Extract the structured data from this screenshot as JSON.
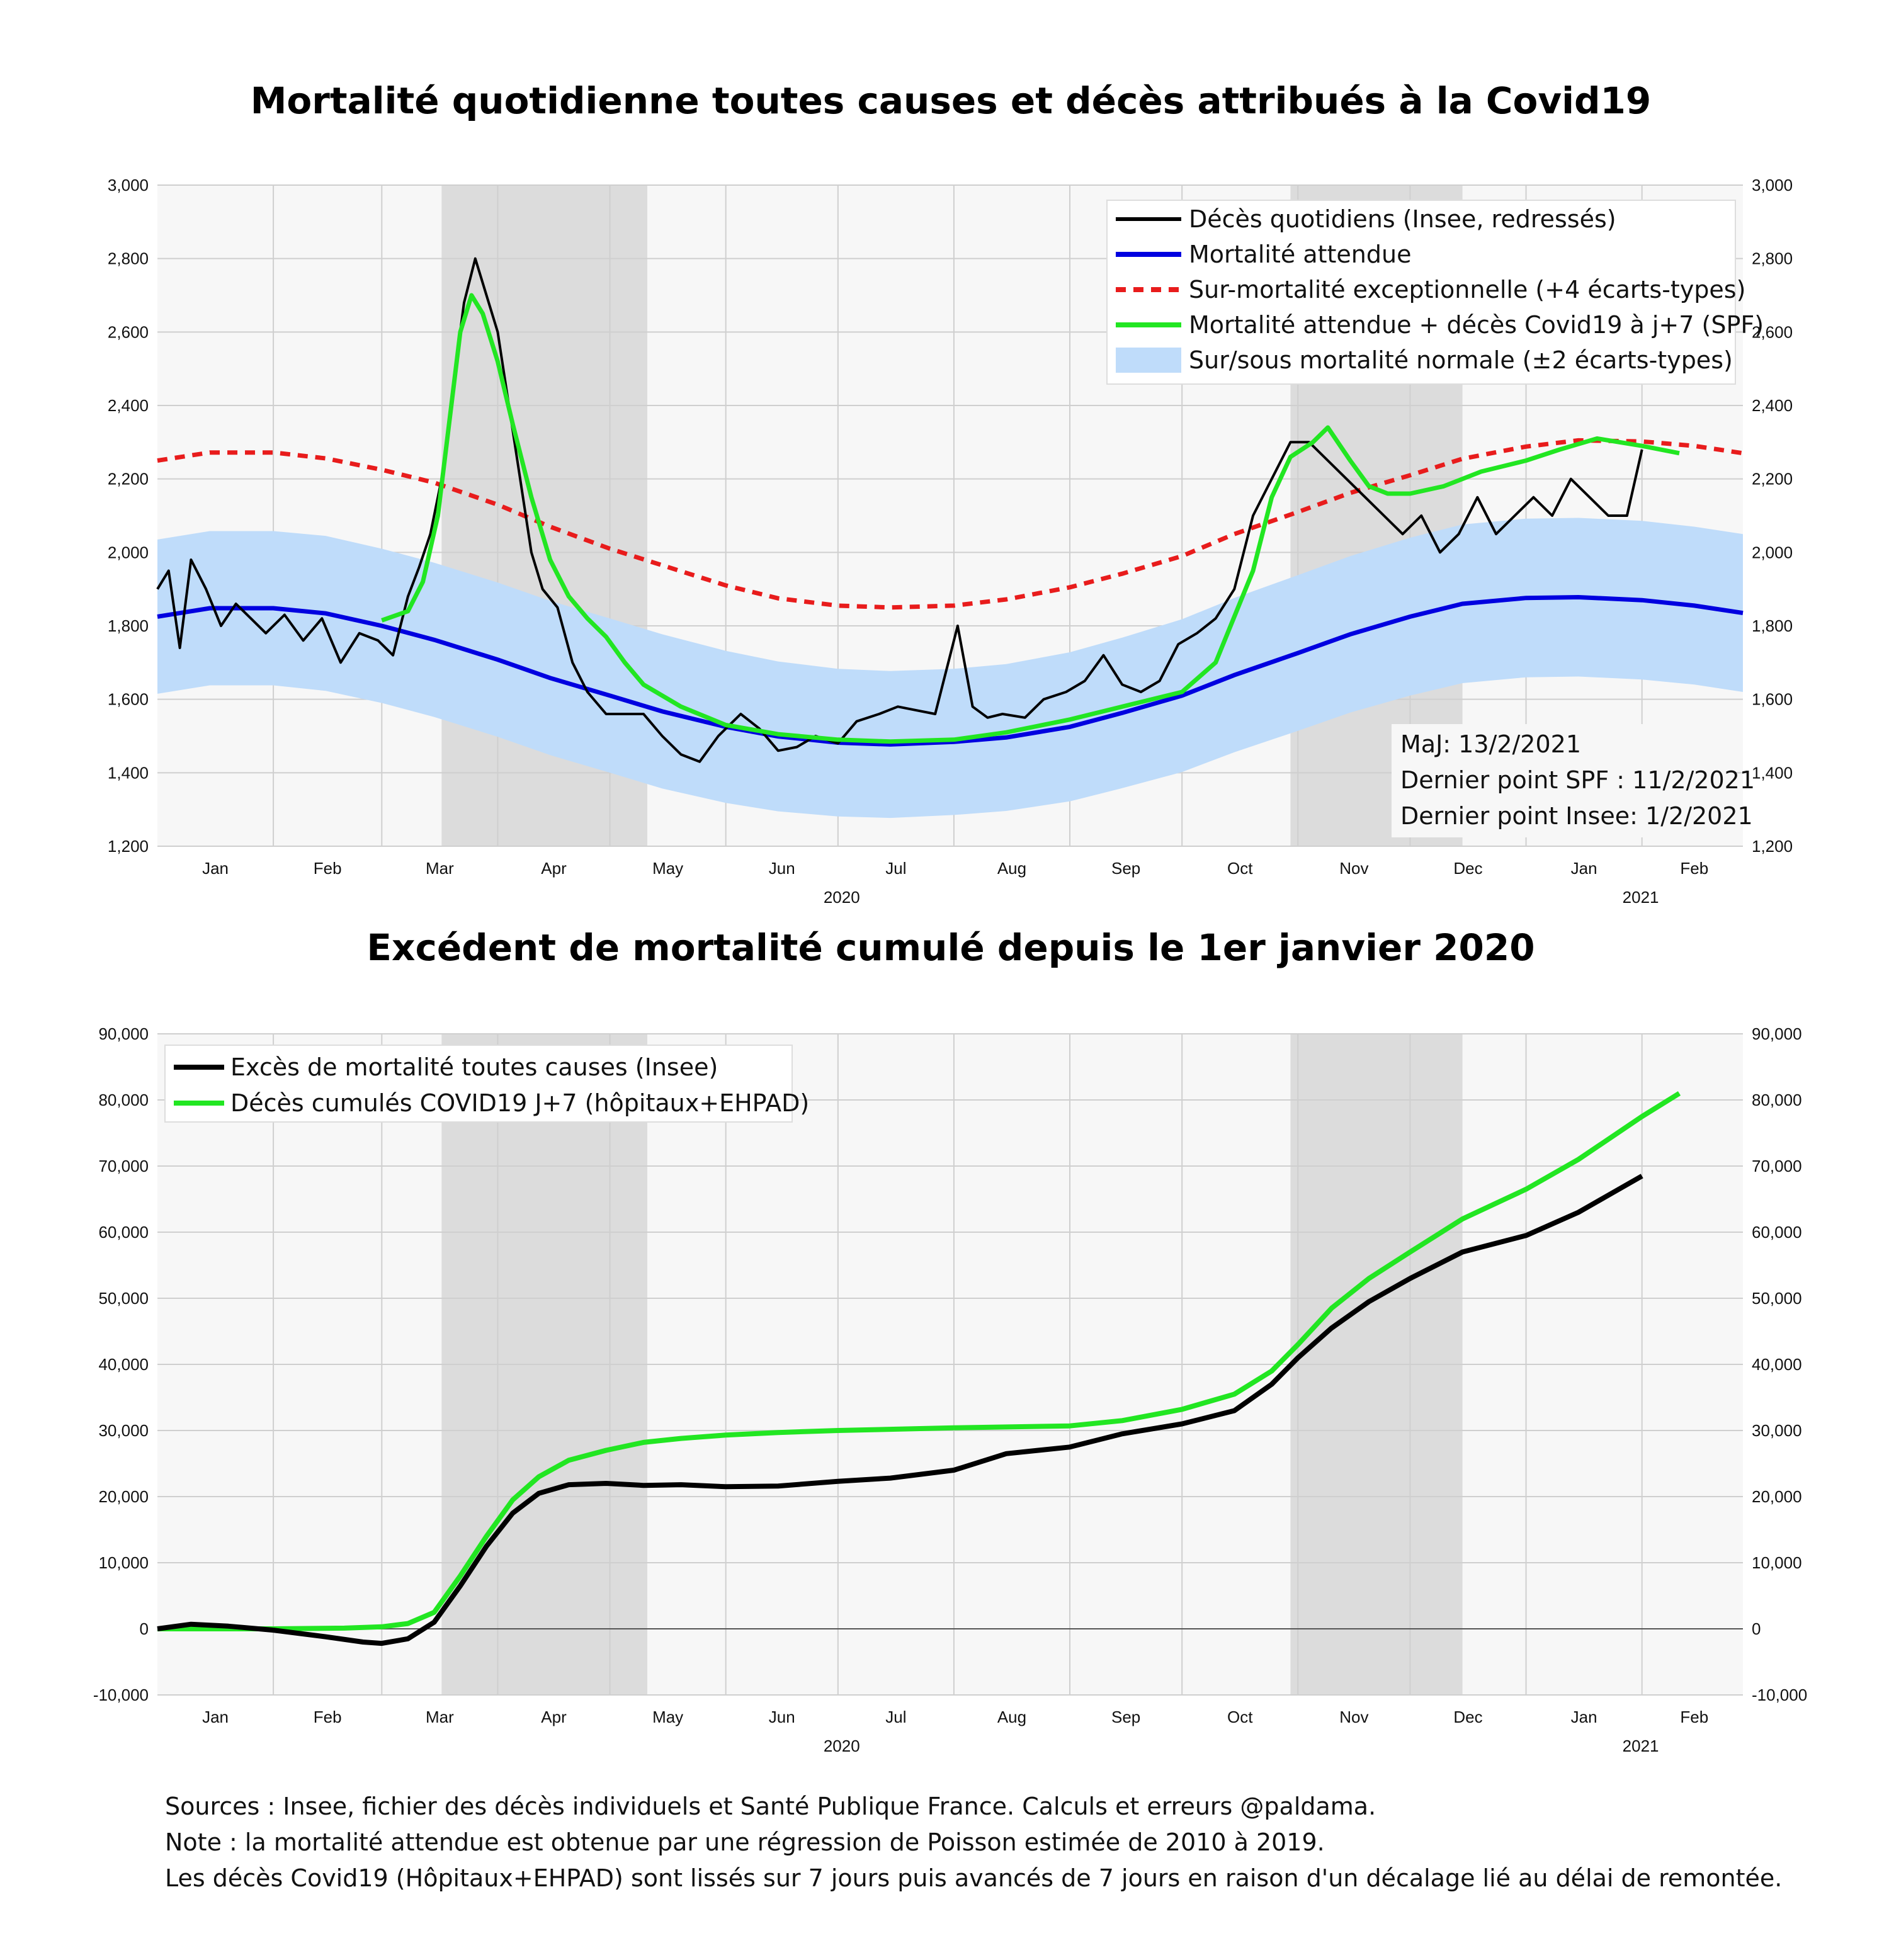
{
  "colors": {
    "daily": "#000000",
    "expected": "#0000e0",
    "exceptional": "#e81c1c",
    "covid": "#22e622",
    "band": "#bfdcfa",
    "plot_bg": "#f7f7f7",
    "shade": "#dcdcdc",
    "grid": "#cfcfcf"
  },
  "chart_data": [
    {
      "type": "line",
      "title": "Mortalité quotidienne toutes causes et décès attribués à la Covid19",
      "x_type": "date",
      "xlim": [
        "2020-01-01",
        "2021-02-28"
      ],
      "ylim": [
        1200,
        3000
      ],
      "y_ticks": [
        "1,200",
        "1,400",
        "1,600",
        "1,800",
        "2,000",
        "2,200",
        "2,400",
        "2,600",
        "2,800",
        "3,000"
      ],
      "month_labels": [
        "Jan",
        "Feb",
        "Mar",
        "Apr",
        "May",
        "Jun",
        "Jul",
        "Aug",
        "Sep",
        "Oct",
        "Nov",
        "Dec",
        "Jan",
        "Feb"
      ],
      "year_labels": [
        "2020",
        "2021"
      ],
      "grid": true,
      "legend_position": "top-right",
      "shaded_periods": [
        [
          "2020-03-17",
          "2020-05-11"
        ],
        [
          "2020-10-30",
          "2020-12-15"
        ]
      ],
      "legend": [
        "Décès quotidiens (Insee, redressés)",
        "Mortalité attendue",
        "Sur-mortalité exceptionnelle (+4 écarts-types)",
        "Mortalité attendue + décès Covid19 à j+7 (SPF)",
        "Sur/sous mortalité normale (±2 écarts-types)"
      ],
      "annotations": [
        "MaJ: 13/2/2021",
        "Dernier point SPF : 11/2/2021",
        "Dernier point Insee: 1/2/2021"
      ],
      "series": [
        {
          "name": "Décès quotidiens (Insee, redressés)",
          "x": [
            "2020-01-01",
            "2020-01-04",
            "2020-01-07",
            "2020-01-10",
            "2020-01-14",
            "2020-01-18",
            "2020-01-22",
            "2020-01-26",
            "2020-01-30",
            "2020-02-04",
            "2020-02-09",
            "2020-02-14",
            "2020-02-19",
            "2020-02-24",
            "2020-02-29",
            "2020-03-04",
            "2020-03-08",
            "2020-03-11",
            "2020-03-14",
            "2020-03-17",
            "2020-03-20",
            "2020-03-23",
            "2020-03-26",
            "2020-03-29",
            "2020-04-01",
            "2020-04-04",
            "2020-04-07",
            "2020-04-10",
            "2020-04-13",
            "2020-04-17",
            "2020-04-21",
            "2020-04-25",
            "2020-04-30",
            "2020-05-05",
            "2020-05-10",
            "2020-05-15",
            "2020-05-20",
            "2020-05-25",
            "2020-05-30",
            "2020-06-05",
            "2020-06-10",
            "2020-06-15",
            "2020-06-20",
            "2020-06-25",
            "2020-07-01",
            "2020-07-06",
            "2020-07-12",
            "2020-07-17",
            "2020-07-22",
            "2020-07-27",
            "2020-08-02",
            "2020-08-06",
            "2020-08-10",
            "2020-08-14",
            "2020-08-20",
            "2020-08-25",
            "2020-08-31",
            "2020-09-05",
            "2020-09-10",
            "2020-09-15",
            "2020-09-20",
            "2020-09-25",
            "2020-09-30",
            "2020-10-05",
            "2020-10-10",
            "2020-10-15",
            "2020-10-20",
            "2020-10-25",
            "2020-10-30",
            "2020-11-04",
            "2020-11-09",
            "2020-11-14",
            "2020-11-19",
            "2020-11-24",
            "2020-11-29",
            "2020-12-04",
            "2020-12-09",
            "2020-12-14",
            "2020-12-19",
            "2020-12-24",
            "2020-12-29",
            "2021-01-03",
            "2021-01-08",
            "2021-01-13",
            "2021-01-18",
            "2021-01-23",
            "2021-01-28",
            "2021-02-01"
          ],
          "values": [
            1900,
            1950,
            1740,
            1980,
            1900,
            1800,
            1860,
            1820,
            1780,
            1830,
            1760,
            1820,
            1700,
            1780,
            1760,
            1720,
            1880,
            1960,
            2050,
            2200,
            2450,
            2680,
            2800,
            2700,
            2600,
            2400,
            2200,
            2000,
            1900,
            1850,
            1700,
            1620,
            1560,
            1560,
            1560,
            1500,
            1450,
            1430,
            1500,
            1560,
            1520,
            1460,
            1470,
            1500,
            1480,
            1540,
            1560,
            1580,
            1570,
            1560,
            1800,
            1580,
            1550,
            1560,
            1550,
            1600,
            1620,
            1650,
            1720,
            1640,
            1620,
            1650,
            1750,
            1780,
            1820,
            1900,
            2100,
            2200,
            2300,
            2300,
            2250,
            2200,
            2150,
            2100,
            2050,
            2100,
            2000,
            2050,
            2150,
            2050,
            2100,
            2150,
            2100,
            2200,
            2150,
            2100,
            2100,
            2280
          ]
        },
        {
          "name": "Mortalité attendue",
          "x": [
            "2020-01-01",
            "2020-01-15",
            "2020-02-01",
            "2020-02-15",
            "2020-03-01",
            "2020-03-15",
            "2020-04-01",
            "2020-04-15",
            "2020-05-01",
            "2020-05-15",
            "2020-06-01",
            "2020-06-15",
            "2020-07-01",
            "2020-07-15",
            "2020-08-01",
            "2020-08-15",
            "2020-09-01",
            "2020-09-15",
            "2020-10-01",
            "2020-10-15",
            "2020-11-01",
            "2020-11-15",
            "2020-12-01",
            "2020-12-15",
            "2021-01-01",
            "2021-01-15",
            "2021-02-01",
            "2021-02-15",
            "2021-02-28"
          ],
          "values": [
            1825,
            1848,
            1848,
            1834,
            1800,
            1762,
            1708,
            1658,
            1610,
            1567,
            1525,
            1499,
            1482,
            1477,
            1484,
            1496,
            1525,
            1563,
            1610,
            1666,
            1726,
            1777,
            1825,
            1860,
            1876,
            1878,
            1870,
            1855,
            1835
          ]
        },
        {
          "name": "Sur-mortalité exceptionnelle (+4 écarts-types)",
          "x": [
            "2020-01-01",
            "2020-01-15",
            "2020-02-01",
            "2020-02-15",
            "2020-03-01",
            "2020-03-15",
            "2020-04-01",
            "2020-04-15",
            "2020-05-01",
            "2020-05-15",
            "2020-06-01",
            "2020-06-15",
            "2020-07-01",
            "2020-07-15",
            "2020-08-01",
            "2020-08-15",
            "2020-09-01",
            "2020-09-15",
            "2020-10-01",
            "2020-10-15",
            "2020-11-01",
            "2020-11-15",
            "2020-12-01",
            "2020-12-15",
            "2021-01-01",
            "2021-01-15",
            "2021-02-01",
            "2021-02-15",
            "2021-02-28"
          ],
          "values": [
            2250,
            2272,
            2272,
            2256,
            2225,
            2190,
            2130,
            2070,
            2010,
            1965,
            1910,
            1875,
            1855,
            1850,
            1855,
            1872,
            1905,
            1942,
            1990,
            2050,
            2110,
            2162,
            2210,
            2255,
            2288,
            2305,
            2302,
            2290,
            2270
          ]
        },
        {
          "name": "Mortalité attendue + décès Covid19 à j+7 (SPF)",
          "x": [
            "2020-03-01",
            "2020-03-08",
            "2020-03-12",
            "2020-03-16",
            "2020-03-19",
            "2020-03-22",
            "2020-03-25",
            "2020-03-28",
            "2020-04-01",
            "2020-04-05",
            "2020-04-10",
            "2020-04-15",
            "2020-04-20",
            "2020-04-25",
            "2020-04-30",
            "2020-05-05",
            "2020-05-10",
            "2020-05-20",
            "2020-06-01",
            "2020-06-15",
            "2020-07-01",
            "2020-07-15",
            "2020-08-01",
            "2020-08-15",
            "2020-09-01",
            "2020-09-15",
            "2020-10-01",
            "2020-10-10",
            "2020-10-20",
            "2020-10-25",
            "2020-10-30",
            "2020-11-05",
            "2020-11-09",
            "2020-11-15",
            "2020-11-20",
            "2020-11-25",
            "2020-12-01",
            "2020-12-10",
            "2020-12-20",
            "2021-01-01",
            "2021-01-10",
            "2021-01-20",
            "2021-02-01",
            "2021-02-11"
          ],
          "values": [
            1815,
            1840,
            1920,
            2100,
            2350,
            2600,
            2700,
            2650,
            2520,
            2350,
            2150,
            1980,
            1880,
            1820,
            1770,
            1700,
            1640,
            1580,
            1530,
            1505,
            1490,
            1485,
            1490,
            1510,
            1545,
            1580,
            1620,
            1700,
            1950,
            2150,
            2260,
            2300,
            2340,
            2250,
            2180,
            2160,
            2160,
            2180,
            2220,
            2250,
            2280,
            2310,
            2290,
            2270
          ]
        },
        {
          "name": "Sur/sous mortalité normale (±2 écarts-types)",
          "x": [
            "2020-01-01",
            "2020-01-15",
            "2020-02-01",
            "2020-02-15",
            "2020-03-01",
            "2020-03-15",
            "2020-04-01",
            "2020-04-15",
            "2020-05-01",
            "2020-05-15",
            "2020-06-01",
            "2020-06-15",
            "2020-07-01",
            "2020-07-15",
            "2020-08-01",
            "2020-08-15",
            "2020-09-01",
            "2020-09-15",
            "2020-10-01",
            "2020-10-15",
            "2020-11-01",
            "2020-11-15",
            "2020-12-01",
            "2020-12-15",
            "2021-01-01",
            "2021-01-15",
            "2021-02-01",
            "2021-02-15",
            "2021-02-28"
          ],
          "upper": [
            2035,
            2058,
            2058,
            2045,
            2010,
            1972,
            1918,
            1868,
            1820,
            1777,
            1732,
            1703,
            1683,
            1677,
            1683,
            1696,
            1728,
            1768,
            1818,
            1876,
            1938,
            1990,
            2040,
            2076,
            2092,
            2094,
            2086,
            2070,
            2050
          ],
          "lower": [
            1615,
            1638,
            1638,
            1623,
            1590,
            1552,
            1498,
            1448,
            1400,
            1357,
            1318,
            1295,
            1281,
            1277,
            1285,
            1296,
            1322,
            1358,
            1402,
            1456,
            1514,
            1564,
            1610,
            1644,
            1660,
            1662,
            1654,
            1640,
            1620
          ]
        }
      ]
    },
    {
      "type": "line",
      "title": "Excédent de mortalité cumulé depuis le 1er janvier 2020",
      "x_type": "date",
      "xlim": [
        "2020-01-01",
        "2021-02-28"
      ],
      "ylim": [
        -10000,
        90000
      ],
      "y_ticks": [
        "-10,000",
        "0",
        "10,000",
        "20,000",
        "30,000",
        "40,000",
        "50,000",
        "60,000",
        "70,000",
        "80,000",
        "90,000"
      ],
      "month_labels": [
        "Jan",
        "Feb",
        "Mar",
        "Apr",
        "May",
        "Jun",
        "Jul",
        "Aug",
        "Sep",
        "Oct",
        "Nov",
        "Dec",
        "Jan",
        "Feb"
      ],
      "year_labels": [
        "2020",
        "2021"
      ],
      "grid": true,
      "legend_position": "top-left",
      "shaded_periods": [
        [
          "2020-03-17",
          "2020-05-11"
        ],
        [
          "2020-10-30",
          "2020-12-15"
        ]
      ],
      "legend": [
        "Excès de mortalité toutes causes (Insee)",
        "Décès cumulés COVID19 J+7 (hôpitaux+EHPAD)"
      ],
      "series": [
        {
          "name": "Excès de mortalité toutes causes (Insee)",
          "x": [
            "2020-01-01",
            "2020-01-10",
            "2020-01-20",
            "2020-02-01",
            "2020-02-15",
            "2020-02-25",
            "2020-03-01",
            "2020-03-08",
            "2020-03-15",
            "2020-03-22",
            "2020-03-29",
            "2020-04-05",
            "2020-04-12",
            "2020-04-20",
            "2020-04-30",
            "2020-05-10",
            "2020-05-20",
            "2020-06-01",
            "2020-06-15",
            "2020-07-01",
            "2020-07-15",
            "2020-08-01",
            "2020-08-15",
            "2020-09-01",
            "2020-09-15",
            "2020-10-01",
            "2020-10-15",
            "2020-10-25",
            "2020-11-01",
            "2020-11-10",
            "2020-11-20",
            "2020-12-01",
            "2020-12-15",
            "2021-01-01",
            "2021-01-15",
            "2021-02-01"
          ],
          "values": [
            0,
            700,
            400,
            -200,
            -1200,
            -2000,
            -2200,
            -1500,
            1000,
            6500,
            12500,
            17500,
            20500,
            21800,
            22000,
            21700,
            21800,
            21500,
            21600,
            22300,
            22800,
            24000,
            26500,
            27500,
            29500,
            31000,
            33000,
            37000,
            41000,
            45500,
            49500,
            53000,
            57000,
            59500,
            63000,
            68500
          ]
        },
        {
          "name": "Décès cumulés COVID19 J+7 (hôpitaux+EHPAD)",
          "x": [
            "2020-01-01",
            "2020-02-01",
            "2020-02-20",
            "2020-03-01",
            "2020-03-08",
            "2020-03-15",
            "2020-03-22",
            "2020-03-29",
            "2020-04-05",
            "2020-04-12",
            "2020-04-20",
            "2020-04-30",
            "2020-05-10",
            "2020-05-20",
            "2020-06-01",
            "2020-06-15",
            "2020-07-01",
            "2020-08-01",
            "2020-09-01",
            "2020-09-15",
            "2020-10-01",
            "2020-10-15",
            "2020-10-25",
            "2020-11-01",
            "2020-11-10",
            "2020-11-20",
            "2020-12-01",
            "2020-12-15",
            "2021-01-01",
            "2021-01-15",
            "2021-02-01",
            "2021-02-11"
          ],
          "values": [
            0,
            0,
            100,
            300,
            800,
            2500,
            8000,
            14000,
            19500,
            23000,
            25500,
            27000,
            28200,
            28800,
            29300,
            29700,
            30000,
            30400,
            30700,
            31500,
            33200,
            35500,
            39000,
            43000,
            48500,
            53000,
            57000,
            62000,
            66500,
            71000,
            77500,
            81000
          ]
        }
      ]
    }
  ],
  "footer": {
    "line1": "Sources : Insee, fichier des décès individuels et Santé Publique France. Calculs et erreurs @paldama.",
    "line2": "Note : la mortalité attendue est obtenue par une régression de Poisson estimée de 2010 à 2019.",
    "line3": "Les décès Covid19 (Hôpitaux+EHPAD) sont lissés sur 7 jours puis avancés de 7 jours en raison  d'un décalage lié au délai de remontée."
  }
}
